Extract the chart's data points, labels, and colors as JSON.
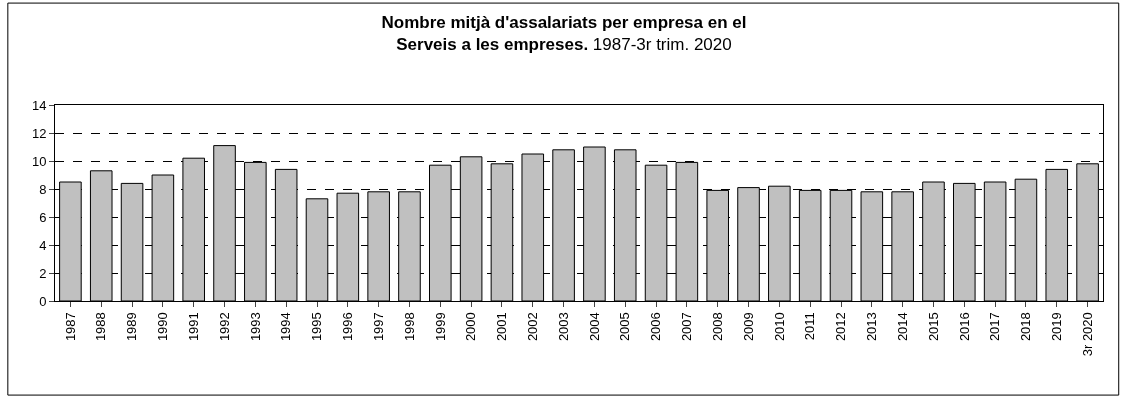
{
  "chart_data": {
    "type": "bar",
    "title": "Nombre mitjà d'assalariats per empresa en el\nServeis a les empreses.",
    "subtitle": "1987-3r trim. 2020",
    "categories": [
      "1987",
      "1988",
      "1989",
      "1990",
      "1991",
      "1992",
      "1993",
      "1994",
      "1995",
      "1996",
      "1997",
      "1998",
      "1999",
      "2000",
      "2001",
      "2002",
      "2003",
      "2004",
      "2005",
      "2006",
      "2007",
      "2008",
      "2009",
      "2010",
      "2011",
      "2012",
      "2013",
      "2014",
      "2015",
      "2016",
      "2017",
      "2018",
      "2019",
      "3r 2020"
    ],
    "values": [
      8.5,
      9.3,
      8.4,
      9.0,
      10.2,
      11.1,
      9.9,
      9.4,
      7.3,
      7.7,
      7.8,
      7.8,
      9.7,
      10.3,
      9.8,
      10.5,
      10.8,
      11.0,
      10.8,
      9.7,
      9.9,
      7.9,
      8.1,
      8.2,
      7.9,
      7.9,
      7.8,
      7.8,
      8.5,
      8.4,
      8.5,
      8.7,
      9.4,
      9.8
    ],
    "color": "#c0c0c0",
    "ylim": [
      0,
      14
    ],
    "yticks": [
      0,
      2,
      4,
      6,
      8,
      10,
      12,
      14
    ],
    "grid": "y"
  }
}
